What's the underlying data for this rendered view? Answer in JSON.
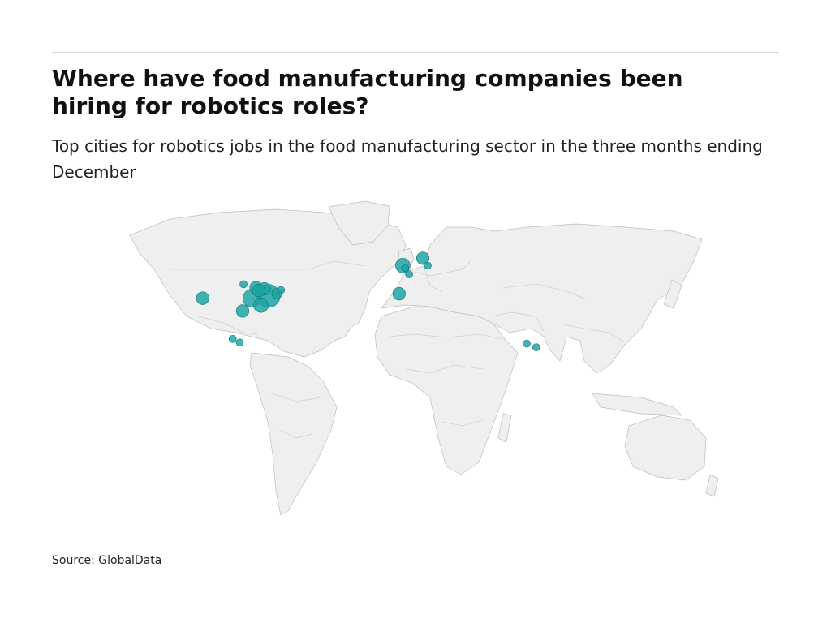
{
  "header": {
    "title": "Where have food manufacturing companies been hiring for robotics roles?",
    "subtitle": "Top cities for robotics jobs in the food manufacturing sector in the three months ending December"
  },
  "footer": {
    "source": "Source: GlobalData"
  },
  "map": {
    "projection": "equirectangular",
    "bubble_color": "#1aa3a3",
    "land_color": "#efefef",
    "border_color": "#c4c4c4",
    "markers": [
      {
        "region": "US Pacific coast (California)",
        "lon": -121.5,
        "lat": 38.5,
        "magnitude": 3
      },
      {
        "region": "US northern plains (Minnesota)",
        "lon": -97.0,
        "lat": 44.5,
        "magnitude": 1
      },
      {
        "region": "US Midwest (Wisconsin)",
        "lon": -89.5,
        "lat": 43.0,
        "magnitude": 3
      },
      {
        "region": "US Great Lakes (Michigan)",
        "lon": -84.5,
        "lat": 42.5,
        "magnitude": 3
      },
      {
        "region": "US Midwest (Illinois)",
        "lon": -88.0,
        "lat": 41.8,
        "magnitude": 3
      },
      {
        "region": "US Ohio Valley",
        "lon": -82.0,
        "lat": 39.5,
        "magnitude": 10
      },
      {
        "region": "US Mid-Atlantic (Pennsylvania)",
        "lon": -77.0,
        "lat": 40.5,
        "magnitude": 2
      },
      {
        "region": "US Northeast (New York)",
        "lon": -74.5,
        "lat": 42.0,
        "magnitude": 1
      },
      {
        "region": "US Midwest (Missouri)",
        "lon": -92.0,
        "lat": 38.5,
        "magnitude": 6
      },
      {
        "region": "US Southeast (Tennessee)",
        "lon": -86.5,
        "lat": 35.5,
        "magnitude": 4
      },
      {
        "region": "US Southwest (Texas)",
        "lon": -97.5,
        "lat": 33.0,
        "magnitude": 3
      },
      {
        "region": "Mexico (Jalisco)",
        "lon": -103.5,
        "lat": 21.0,
        "magnitude": 1
      },
      {
        "region": "Mexico (Mexico City)",
        "lon": -99.2,
        "lat": 19.4,
        "magnitude": 1
      },
      {
        "region": "United Kingdom",
        "lon": -1.5,
        "lat": 52.5,
        "magnitude": 4
      },
      {
        "region": "United Kingdom (London)",
        "lon": -0.1,
        "lat": 51.5,
        "magnitude": 1
      },
      {
        "region": "France (Paris)",
        "lon": 2.3,
        "lat": 48.8,
        "magnitude": 1
      },
      {
        "region": "Spain (Madrid)",
        "lon": -3.7,
        "lat": 40.4,
        "magnitude": 3
      },
      {
        "region": "Denmark",
        "lon": 10.5,
        "lat": 55.7,
        "magnitude": 3
      },
      {
        "region": "Germany (Berlin)",
        "lon": 13.4,
        "lat": 52.5,
        "magnitude": 1
      },
      {
        "region": "India (Mumbai)",
        "lon": 72.8,
        "lat": 19.0,
        "magnitude": 1
      },
      {
        "region": "India (Hyderabad)",
        "lon": 78.5,
        "lat": 17.4,
        "magnitude": 1
      }
    ]
  }
}
